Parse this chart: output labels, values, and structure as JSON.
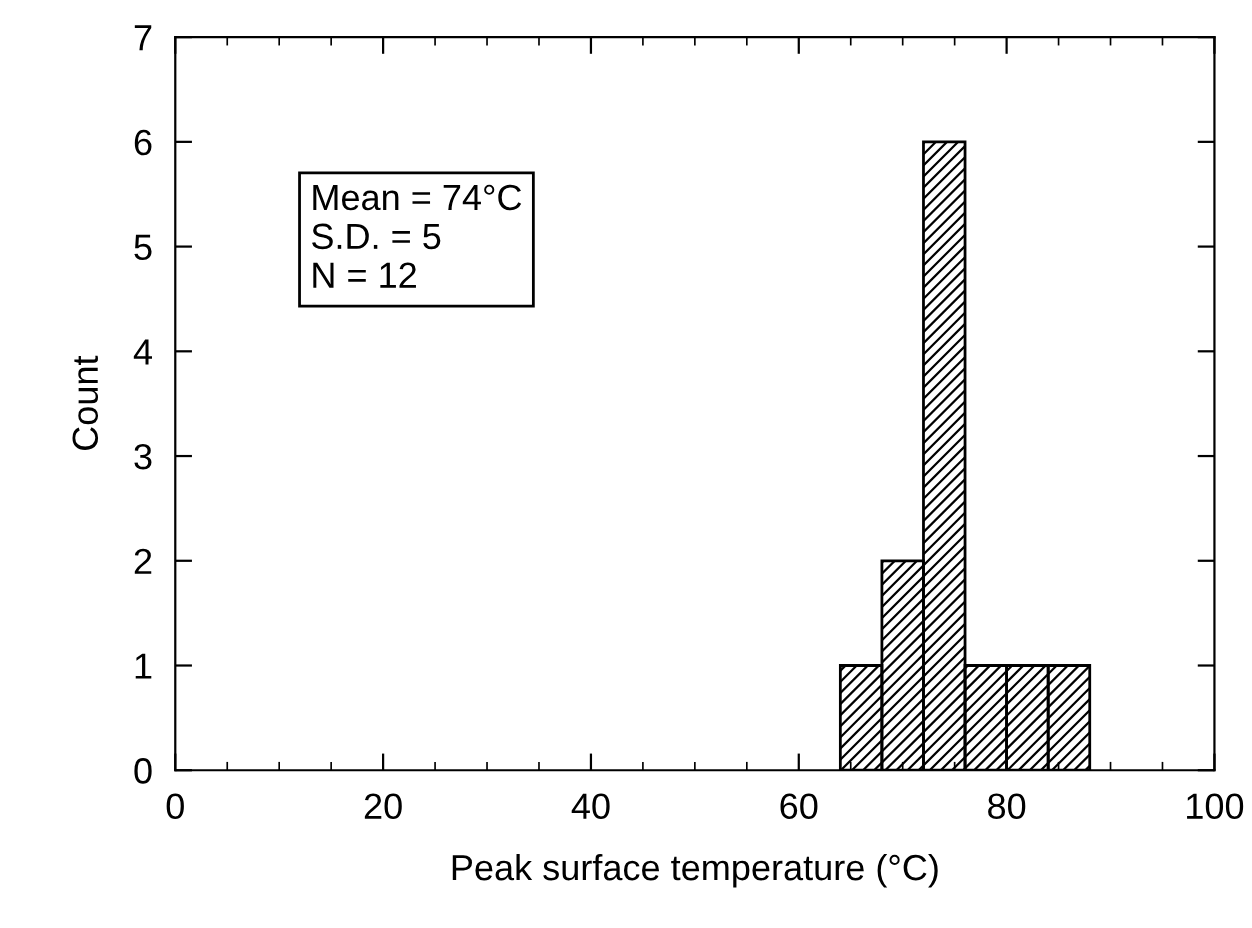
{
  "chart_data": {
    "type": "histogram",
    "xlabel": "Peak surface temperature (°C)",
    "ylabel": "Count",
    "bins": [
      64,
      68,
      72,
      76,
      80,
      84,
      88
    ],
    "values": [
      1,
      2,
      6,
      1,
      1,
      1
    ],
    "xlim": [
      0,
      100
    ],
    "xticks": [
      0,
      20,
      40,
      60,
      80,
      100
    ],
    "ylim": [
      0,
      7
    ],
    "yticks": [
      0,
      1,
      2,
      3,
      4,
      5,
      6,
      7
    ],
    "annotations": [
      "Mean = 74°C\nS.D. = 5\nN = 12"
    ],
    "grid": false,
    "legend": false
  }
}
